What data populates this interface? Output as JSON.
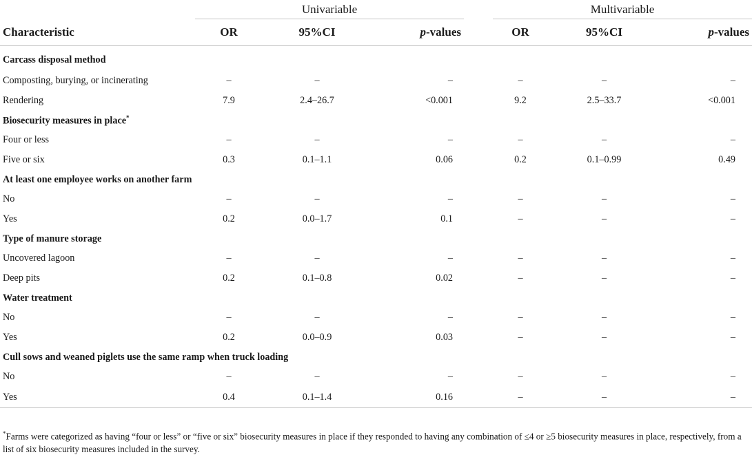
{
  "header": {
    "group_uni": "Univariable",
    "group_multi": "Multivariable",
    "col_characteristic": "Characteristic",
    "col_or": "OR",
    "col_ci": "95%CI",
    "col_p_italic": "p",
    "col_p_rest": "-values"
  },
  "sections": [
    {
      "title": "Carcass disposal method",
      "rows": [
        {
          "label": "Composting, burying, or incinerating",
          "u_or": "–",
          "u_ci": "–",
          "u_p": "–",
          "m_or": "–",
          "m_ci": "–",
          "m_p": "–"
        },
        {
          "label": "Rendering",
          "u_or": "7.9",
          "u_ci": "2.4–26.7",
          "u_p": "<0.001",
          "m_or": "9.2",
          "m_ci": "2.5–33.7",
          "m_p": "<0.001"
        }
      ]
    },
    {
      "title": "Biosecurity measures in place",
      "title_mark": "*",
      "rows": [
        {
          "label": "Four or less",
          "u_or": "–",
          "u_ci": "–",
          "u_p": "–",
          "m_or": "–",
          "m_ci": "–",
          "m_p": "–"
        },
        {
          "label": "Five or six",
          "u_or": "0.3",
          "u_ci": "0.1–1.1",
          "u_p": "0.06",
          "m_or": "0.2",
          "m_ci": "0.1–0.99",
          "m_p": "0.49"
        }
      ]
    },
    {
      "title": "At least one employee works on another farm",
      "rows": [
        {
          "label": "No",
          "u_or": "–",
          "u_ci": "–",
          "u_p": "–",
          "m_or": "–",
          "m_ci": "–",
          "m_p": "–"
        },
        {
          "label": "Yes",
          "u_or": "0.2",
          "u_ci": "0.0–1.7",
          "u_p": "0.1",
          "m_or": "–",
          "m_ci": "–",
          "m_p": "–"
        }
      ]
    },
    {
      "title": "Type of manure storage",
      "rows": [
        {
          "label": "Uncovered lagoon",
          "u_or": "–",
          "u_ci": "–",
          "u_p": "–",
          "m_or": "–",
          "m_ci": "–",
          "m_p": "–"
        },
        {
          "label": "Deep pits",
          "u_or": "0.2",
          "u_ci": "0.1–0.8",
          "u_p": "0.02",
          "m_or": "–",
          "m_ci": "–",
          "m_p": "–"
        }
      ]
    },
    {
      "title": "Water treatment",
      "rows": [
        {
          "label": "No",
          "u_or": "–",
          "u_ci": "–",
          "u_p": "–",
          "m_or": "–",
          "m_ci": "–",
          "m_p": "–"
        },
        {
          "label": "Yes",
          "u_or": "0.2",
          "u_ci": "0.0–0.9",
          "u_p": "0.03",
          "m_or": "–",
          "m_ci": "–",
          "m_p": "–"
        }
      ]
    },
    {
      "title": "Cull sows and weaned piglets use the same ramp when truck loading",
      "rows": [
        {
          "label": "No",
          "u_or": "–",
          "u_ci": "–",
          "u_p": "–",
          "m_or": "–",
          "m_ci": "–",
          "m_p": "–"
        },
        {
          "label": "Yes",
          "u_or": "0.4",
          "u_ci": "0.1–1.4",
          "u_p": "0.16",
          "m_or": "–",
          "m_ci": "–",
          "m_p": "–"
        }
      ]
    }
  ],
  "footnote": {
    "mark": "*",
    "text": "Farms were categorized as having “four or less” or “five or six” biosecurity measures in place if they responded to having any combination of ≤4 or ≥5 biosecurity measures in place, respectively, from a list of six biosecurity measures included in the survey."
  }
}
